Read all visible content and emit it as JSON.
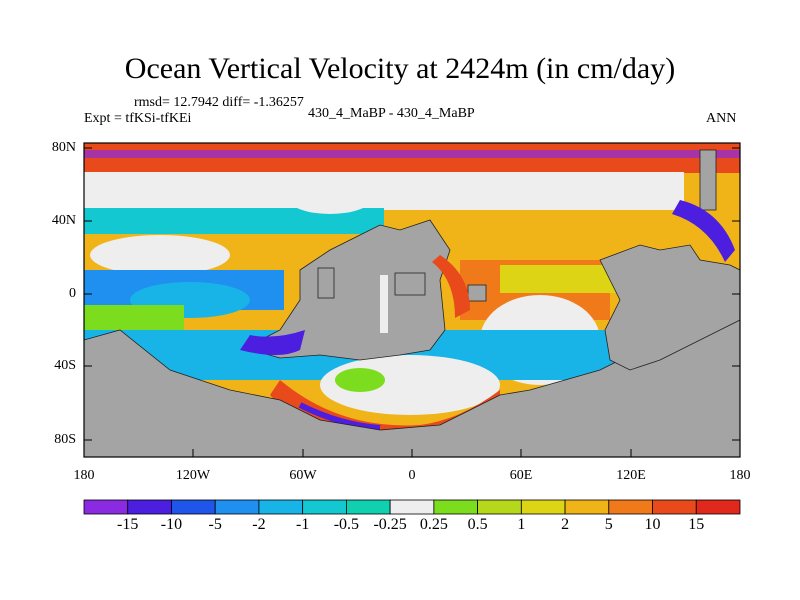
{
  "title": "Ocean Vertical Velocity at 2424m (in cm/day)",
  "stats": "rmsd= 12.7942 diff= -1.36257",
  "expt": "Expt = tfKSi-tfKEi",
  "comparison": "430_4_MaBP - 430_4_MaBP",
  "season": "ANN",
  "lat_labels": [
    "80N",
    "40N",
    "0",
    "40S",
    "80S"
  ],
  "lon_labels": [
    "180",
    "120W",
    "60W",
    "0",
    "60E",
    "120E",
    "180"
  ],
  "colorbar": {
    "labels": [
      "-15",
      "-10",
      "-5",
      "-2",
      "-1",
      "-0.5",
      "-0.25",
      "0.25",
      "0.5",
      "1",
      "2",
      "5",
      "10",
      "15"
    ],
    "colors": [
      "#8a2be2",
      "#4b1ee0",
      "#1f55e8",
      "#1f8ff0",
      "#18b4e8",
      "#14c8d2",
      "#10d0b0",
      "#eeeeee",
      "#7cdc1e",
      "#b6d81a",
      "#dcd414",
      "#f0b418",
      "#f07a1a",
      "#e84a1c",
      "#e0281c"
    ]
  },
  "palette": {
    "land": "#a4a4a4",
    "neutral": "#eeeeee"
  }
}
